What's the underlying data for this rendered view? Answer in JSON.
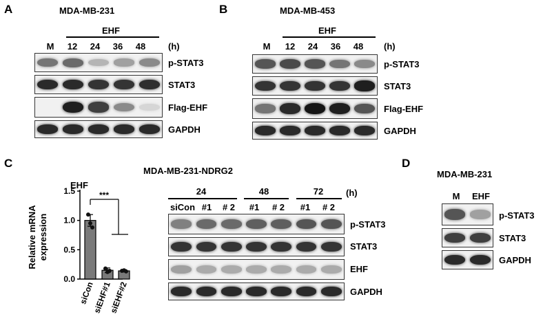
{
  "panelA": {
    "label": "A",
    "title": "MDA-MB-231",
    "group": "EHF",
    "lanes": [
      "M",
      "12",
      "24",
      "36",
      "48"
    ],
    "unit": "(h)",
    "blots": [
      {
        "name": "p-STAT3",
        "intensities": [
          0.55,
          0.6,
          0.25,
          0.35,
          0.45
        ]
      },
      {
        "name": "STAT3",
        "intensities": [
          0.9,
          0.9,
          0.85,
          0.85,
          0.88
        ]
      },
      {
        "name": "Flag-EHF",
        "intensities": [
          0.0,
          0.95,
          0.8,
          0.45,
          0.1
        ]
      },
      {
        "name": "GAPDH",
        "intensities": [
          0.9,
          0.9,
          0.9,
          0.9,
          0.9
        ]
      }
    ]
  },
  "panelB": {
    "label": "B",
    "title": "MDA-MB-453",
    "group": "EHF",
    "lanes": [
      "M",
      "12",
      "24",
      "36",
      "48"
    ],
    "unit": "(h)",
    "blots": [
      {
        "name": "p-STAT3",
        "intensities": [
          0.7,
          0.75,
          0.7,
          0.55,
          0.45
        ]
      },
      {
        "name": "STAT3",
        "intensities": [
          0.85,
          0.85,
          0.85,
          0.85,
          0.95
        ]
      },
      {
        "name": "Flag-EHF",
        "intensities": [
          0.55,
          0.9,
          1.0,
          0.95,
          0.7
        ]
      },
      {
        "name": "GAPDH",
        "intensities": [
          0.9,
          0.9,
          0.9,
          0.9,
          0.9
        ]
      }
    ]
  },
  "panelC": {
    "label": "C",
    "title": "MDA-MB-231-NDRG2",
    "chart_data": {
      "type": "bar",
      "title": "EHF",
      "ylabel": "Relative mRNA expression",
      "ylabel_line1": "Relative mRNA",
      "ylabel_line2": "expression",
      "categories": [
        "siCon",
        "siEHF#1",
        "siEHF#2"
      ],
      "values": [
        1.0,
        0.15,
        0.14
      ],
      "points": [
        [
          1.1,
          0.95,
          0.88
        ],
        [
          0.18,
          0.12,
          0.14
        ],
        [
          0.14,
          0.15,
          0.13
        ]
      ],
      "errors": [
        0.1,
        0.04,
        0.02
      ],
      "ylim": [
        0,
        1.5
      ],
      "yticks": [
        "0.0",
        "0.5",
        "1.0",
        "1.5"
      ],
      "significance": "***",
      "bar_color": "#7a7a7a"
    },
    "time_groups": [
      "24",
      "48",
      "72"
    ],
    "unit": "(h)",
    "lanes": [
      "siCon",
      "#1",
      "# 2",
      "#1",
      "# 2",
      "#1",
      "# 2"
    ],
    "blots": [
      {
        "name": "p-STAT3",
        "intensities": [
          0.5,
          0.6,
          0.6,
          0.65,
          0.65,
          0.7,
          0.7
        ]
      },
      {
        "name": "STAT3",
        "intensities": [
          0.85,
          0.85,
          0.85,
          0.85,
          0.85,
          0.85,
          0.85
        ]
      },
      {
        "name": "EHF",
        "intensities": [
          0.35,
          0.3,
          0.3,
          0.3,
          0.3,
          0.3,
          0.3
        ]
      },
      {
        "name": "GAPDH",
        "intensities": [
          0.9,
          0.9,
          0.9,
          0.9,
          0.9,
          0.9,
          0.9
        ]
      }
    ]
  },
  "panelD": {
    "label": "D",
    "title": "MDA-MB-231",
    "lanes": [
      "M",
      "EHF"
    ],
    "blots": [
      {
        "name": "p-STAT3",
        "intensities": [
          0.7,
          0.35
        ]
      },
      {
        "name": "STAT3",
        "intensities": [
          0.8,
          0.8
        ]
      },
      {
        "name": "GAPDH",
        "intensities": [
          0.9,
          0.9
        ]
      }
    ]
  }
}
